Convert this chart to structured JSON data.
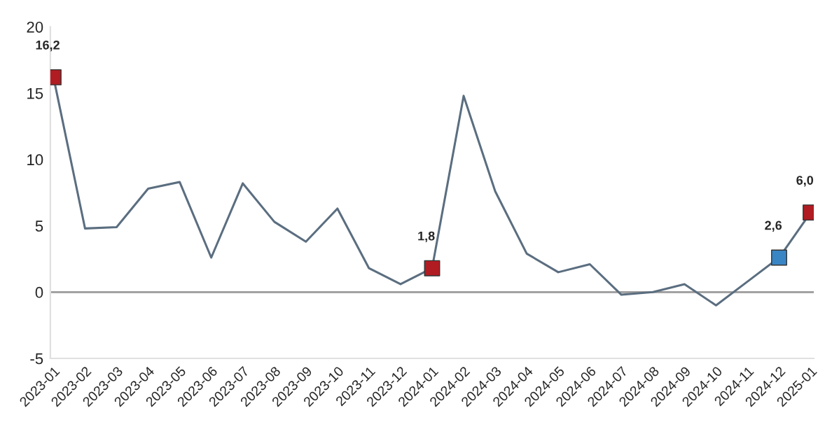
{
  "chart_data": {
    "type": "line",
    "categories": [
      "2023-01",
      "2023-02",
      "2023-03",
      "2023-04",
      "2023-05",
      "2023-06",
      "2023-07",
      "2023-08",
      "2023-09",
      "2023-10",
      "2023-11",
      "2023-12",
      "2024-01",
      "2024-02",
      "2024-03",
      "2024-04",
      "2024-05",
      "2024-06",
      "2024-07",
      "2024-08",
      "2024-09",
      "2024-10",
      "2024-11",
      "2024-12",
      "2025-01"
    ],
    "series": [
      {
        "color": "#5b6e80",
        "marker": "none",
        "values": [
          16.2,
          4.8,
          4.9,
          7.8,
          8.3,
          2.6,
          8.2,
          5.3,
          3.8,
          6.3,
          1.8,
          0.6,
          1.8,
          14.8,
          7.6,
          2.9,
          1.5,
          2.1,
          -0.2,
          0.0,
          0.6,
          -1.0,
          0.8,
          2.6,
          6.0
        ]
      },
      {
        "type": "scatter",
        "marker": "square",
        "values": [
          16.2,
          null,
          null,
          null,
          null,
          null,
          null,
          null,
          null,
          null,
          null,
          null,
          1.8,
          null,
          null,
          null,
          null,
          null,
          null,
          null,
          null,
          null,
          null,
          2.6,
          6.0
        ],
        "colors": [
          "#b01c22",
          null,
          null,
          null,
          null,
          null,
          null,
          null,
          null,
          null,
          null,
          null,
          "#b01c22",
          null,
          null,
          null,
          null,
          null,
          null,
          null,
          null,
          null,
          null,
          "#3a85c4",
          "#b01c22"
        ],
        "value_labels": [
          "16,2",
          null,
          null,
          null,
          null,
          null,
          null,
          null,
          null,
          null,
          null,
          null,
          "1,8",
          null,
          null,
          null,
          null,
          null,
          null,
          null,
          null,
          null,
          null,
          "2,6",
          "6,0"
        ]
      }
    ],
    "ylim": [
      -5,
      20
    ],
    "yticks": [
      -5,
      0,
      5,
      10,
      15,
      20
    ],
    "ref_lines": [
      {
        "axis": "y",
        "value": 0,
        "color": "#9a9a9a"
      }
    ],
    "grid": false,
    "legend": false
  }
}
